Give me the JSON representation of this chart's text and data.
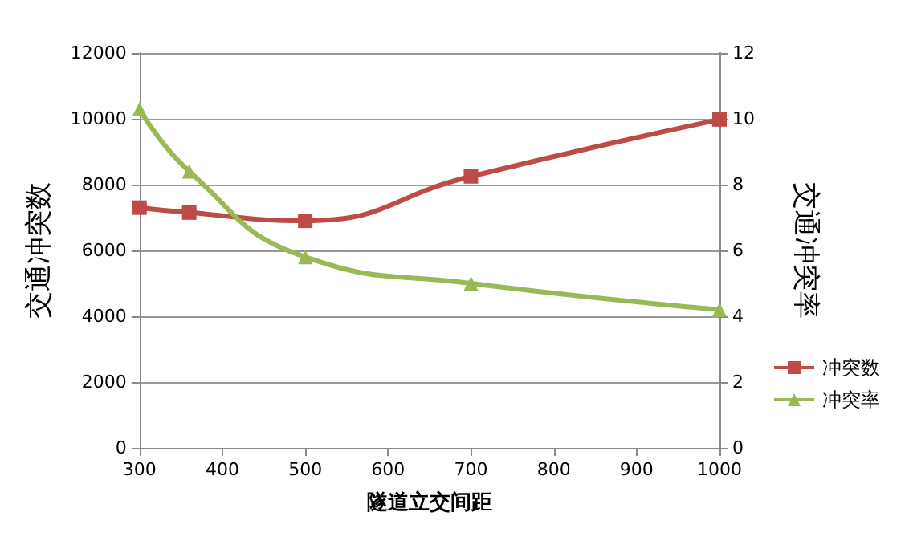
{
  "chart_data": {
    "type": "line",
    "xlabel": "隧道立交间距",
    "ylabel": "交通冲突数",
    "y2label": "交通冲突率",
    "x": [
      300,
      360,
      500,
      700,
      1000
    ],
    "series": [
      {
        "name": "冲突数",
        "color": "#be4b48",
        "marker": "square",
        "values": [
          7300,
          7150,
          6900,
          8250,
          9980
        ]
      },
      {
        "name": "冲突率",
        "color": "#98b954",
        "marker": "triangle",
        "axis": "y2",
        "values": [
          10.3,
          8.4,
          5.8,
          5.0,
          4.2
        ]
      }
    ],
    "xlim": [
      300,
      1000
    ],
    "xticks": [
      300,
      400,
      500,
      600,
      700,
      800,
      900,
      1000
    ],
    "ylim": [
      0,
      12000
    ],
    "yticks": [
      0,
      2000,
      4000,
      6000,
      8000,
      10000,
      12000
    ],
    "y2lim": [
      0,
      12
    ],
    "y2ticks": [
      0,
      2,
      4,
      6,
      8,
      10,
      12
    ],
    "grid": "y",
    "legend": "right"
  }
}
